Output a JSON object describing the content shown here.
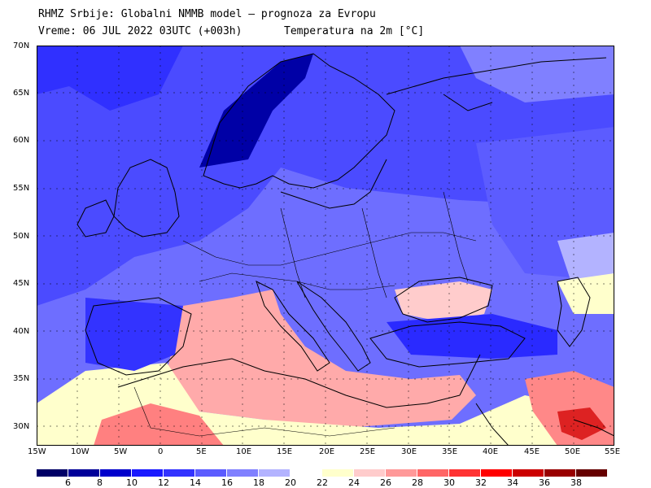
{
  "header": {
    "line1": "RHMZ Srbije: Globalni NMMB model — prognoza za Evropu",
    "line2": "Vreme: 06 JUL 2022 03UTC (+003h)",
    "line3": "Temperatura na 2m [°C]"
  },
  "axes": {
    "lat_labels": [
      "70N",
      "65N",
      "60N",
      "55N",
      "50N",
      "45N",
      "40N",
      "35N",
      "30N"
    ],
    "lon_labels": [
      "15W",
      "10W",
      "5W",
      "0",
      "5E",
      "10E",
      "15E",
      "20E",
      "25E",
      "30E",
      "35E",
      "40E",
      "45E",
      "50E",
      "55E"
    ]
  },
  "colorbar": {
    "labels": [
      "6",
      "8",
      "10",
      "12",
      "14",
      "16",
      "18",
      "20",
      "22",
      "24",
      "26",
      "28",
      "30",
      "32",
      "34",
      "36",
      "38"
    ],
    "colors": [
      "#000066",
      "#000099",
      "#0000cc",
      "#1a1aff",
      "#3333ff",
      "#5c5cff",
      "#8080ff",
      "#b3b3ff",
      "#ffffff",
      "#ffffcc",
      "#ffcccc",
      "#ff9999",
      "#ff6666",
      "#ff3333",
      "#ff0000",
      "#cc0000",
      "#990000",
      "#660000"
    ]
  }
}
